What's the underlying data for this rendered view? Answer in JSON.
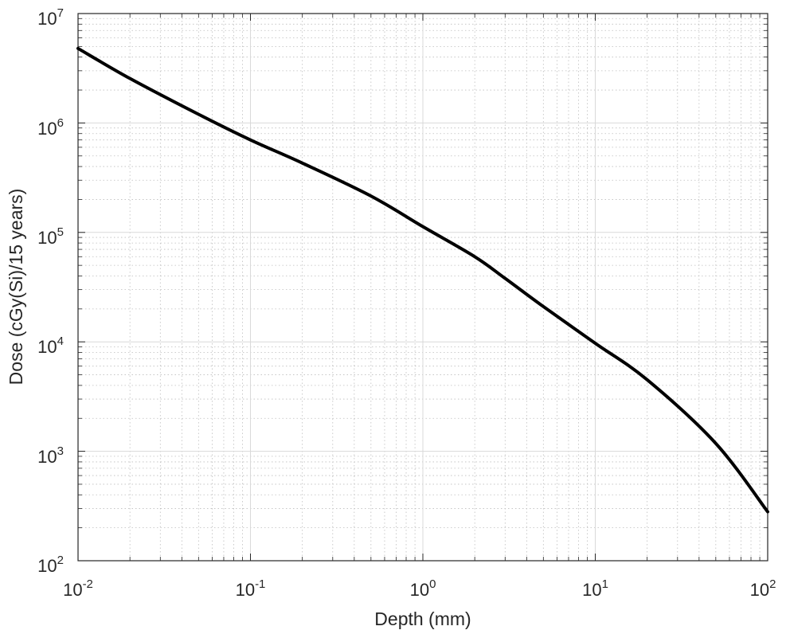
{
  "chart_data": {
    "type": "line",
    "title": "",
    "xlabel": "Depth (mm)",
    "ylabel": "Dose (cGy(Si)/15 years)",
    "xscale": "log",
    "yscale": "log",
    "xlim": [
      0.01,
      100
    ],
    "ylim": [
      100,
      10000000
    ],
    "grid": true,
    "minor_grid": true,
    "legend": "none",
    "line_color": "#000000",
    "x_ticks": [
      {
        "base": "10",
        "exp": "-2",
        "value": 0.01
      },
      {
        "base": "10",
        "exp": "-1",
        "value": 0.1
      },
      {
        "base": "10",
        "exp": "0",
        "value": 1
      },
      {
        "base": "10",
        "exp": "1",
        "value": 10
      },
      {
        "base": "10",
        "exp": "2",
        "value": 100
      }
    ],
    "y_ticks": [
      {
        "base": "10",
        "exp": "2",
        "value": 100
      },
      {
        "base": "10",
        "exp": "3",
        "value": 1000
      },
      {
        "base": "10",
        "exp": "4",
        "value": 10000
      },
      {
        "base": "10",
        "exp": "5",
        "value": 100000
      },
      {
        "base": "10",
        "exp": "6",
        "value": 1000000
      },
      {
        "base": "10",
        "exp": "7",
        "value": 10000000
      }
    ],
    "series": [
      {
        "x": [
          0.01,
          0.02,
          0.05,
          0.1,
          0.2,
          0.5,
          1,
          2,
          3,
          5,
          10,
          20,
          50,
          100
        ],
        "y": [
          4800000,
          2550000,
          1200000,
          700000,
          430000,
          215000,
          113000,
          60000,
          38000,
          21000,
          9700,
          4500,
          1180,
          280
        ]
      }
    ]
  }
}
